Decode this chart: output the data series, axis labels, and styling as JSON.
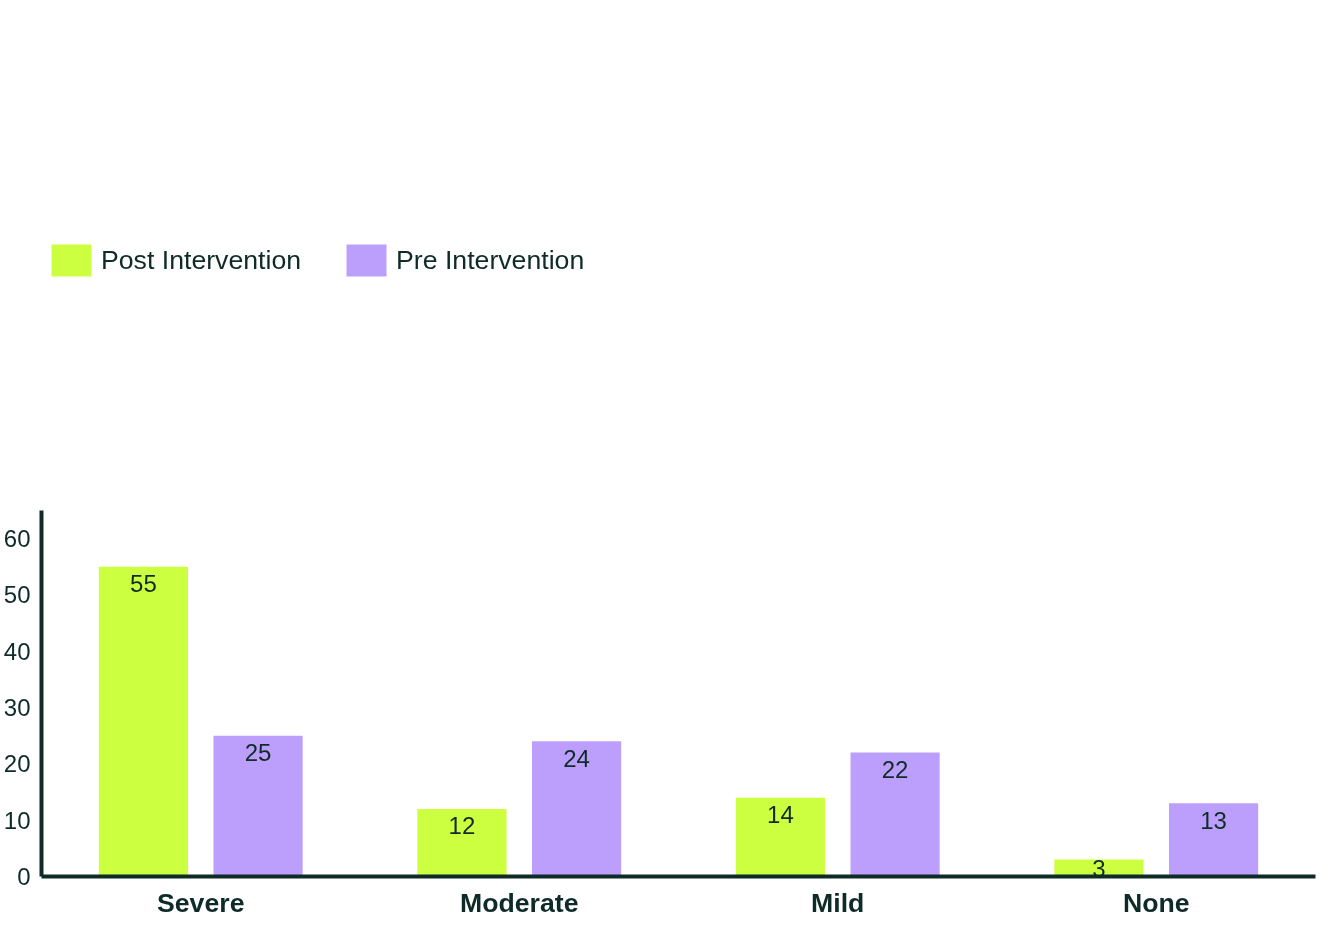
{
  "chart_data": {
    "type": "bar",
    "categories": [
      "Severe",
      "Moderate",
      "Mild",
      "None"
    ],
    "series": [
      {
        "name": "Post Intervention",
        "color": "#ccff3f",
        "values": [
          55,
          12,
          14,
          3
        ]
      },
      {
        "name": "Pre Intervention",
        "color": "#bc9ffd",
        "values": [
          25,
          24,
          22,
          13
        ]
      }
    ],
    "ylim": [
      0,
      65
    ],
    "yticks": [
      0,
      10,
      20,
      30,
      40,
      50,
      60
    ],
    "grid": false,
    "legend": "top left",
    "data_labels": true
  }
}
